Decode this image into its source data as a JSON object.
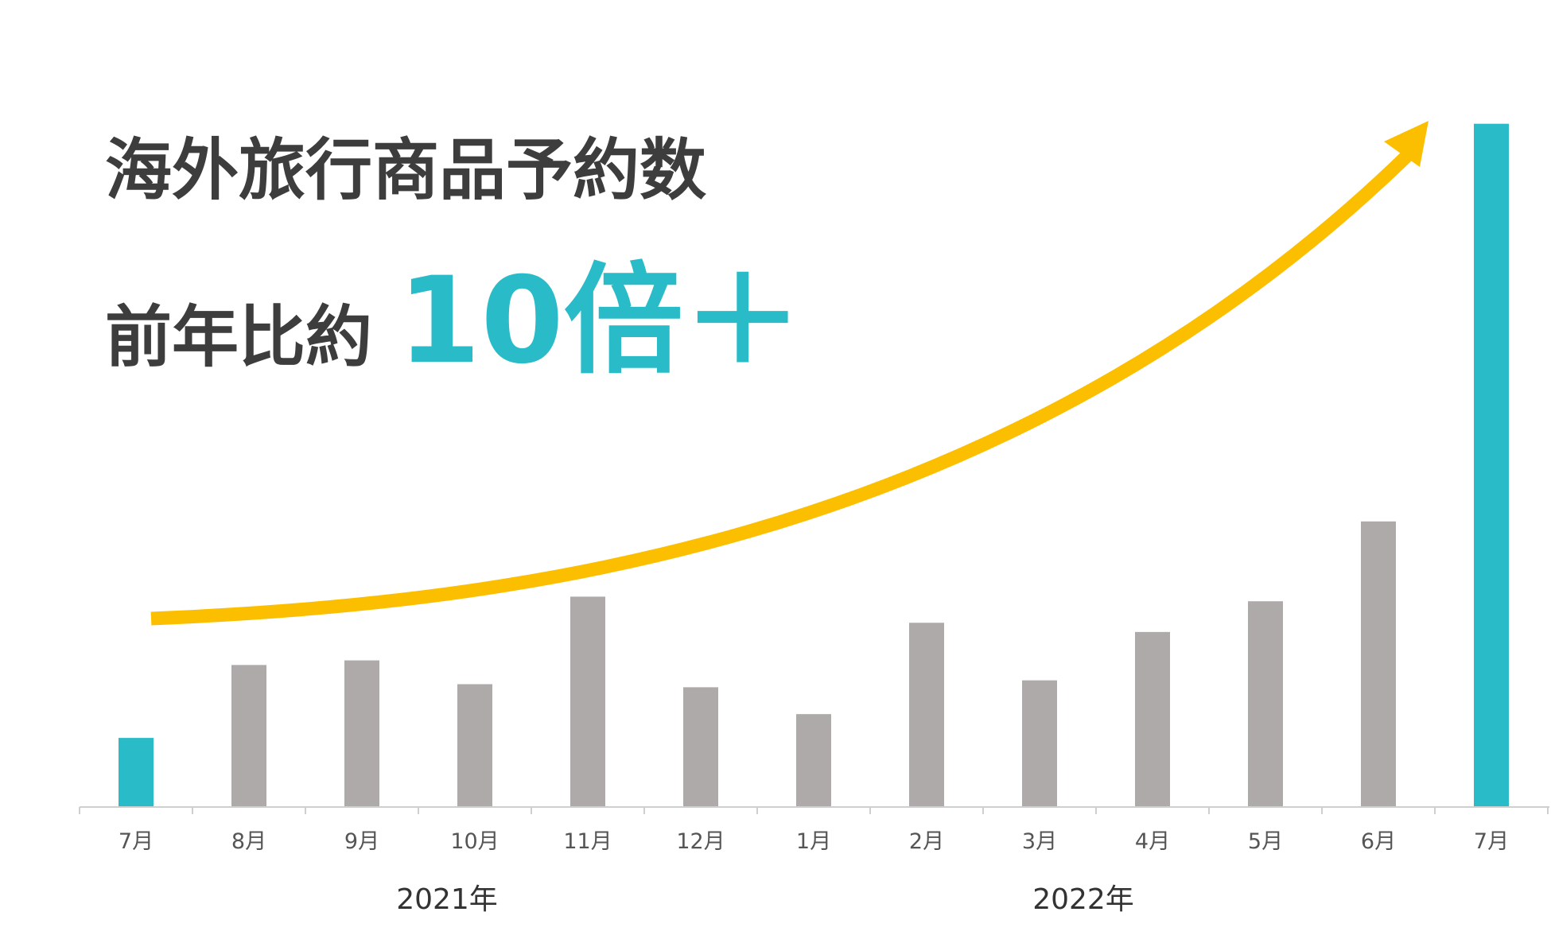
{
  "chart_data": {
    "type": "bar",
    "title": "海外旅行商品予約数",
    "subtitle_prefix": "前年比約",
    "subtitle_highlight": "10倍＋",
    "categories": [
      "7月",
      "8月",
      "9月",
      "10月",
      "11月",
      "12月",
      "1月",
      "2月",
      "3月",
      "4月",
      "5月",
      "6月",
      "7月"
    ],
    "values": [
      0.9,
      1.85,
      1.91,
      1.6,
      2.74,
      1.56,
      1.21,
      2.4,
      1.65,
      2.28,
      2.68,
      3.72,
      8.9
    ],
    "year_labels": [
      "2021年",
      "2022年"
    ],
    "ylim": [
      0,
      9
    ],
    "highlighted_indices": [
      0,
      12
    ],
    "colors": {
      "bar": "#adaaa9",
      "highlight": "#29bcc8",
      "arrow": "#fcbf00",
      "axis": "#cfcfcf"
    }
  }
}
